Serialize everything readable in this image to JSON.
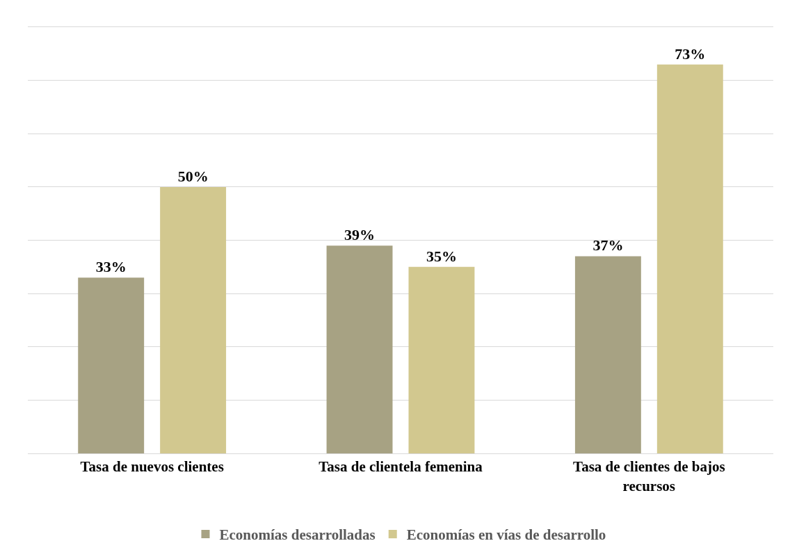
{
  "chart_data": {
    "type": "bar",
    "categories": [
      "Tasa de nuevos clientes",
      "Tasa de clientela femenina",
      "Tasa de clientes de bajos recursos"
    ],
    "series": [
      {
        "name": "Economías desarrolladas",
        "color": "#a7a283",
        "values": [
          33,
          39,
          37
        ],
        "value_labels": [
          "33%",
          "39%",
          "37%"
        ]
      },
      {
        "name": "Economías en vías de desarrollo",
        "color": "#d2c88f",
        "values": [
          50,
          35,
          73
        ],
        "value_labels": [
          "50%",
          "35%",
          "73%"
        ]
      }
    ],
    "ylim": [
      0,
      80
    ],
    "yticks": [
      {
        "value": 0,
        "label": null
      },
      {
        "value": 10,
        "label": null
      },
      {
        "value": 20,
        "label": null
      },
      {
        "value": 30,
        "label": null
      },
      {
        "value": 40,
        "label": null
      },
      {
        "value": 50,
        "label": null
      },
      {
        "value": 60,
        "label": null
      },
      {
        "value": 70,
        "label": null
      },
      {
        "value": 80,
        "label": null
      }
    ],
    "tick_labels": "x",
    "grid": "y",
    "legend": "bottom"
  }
}
